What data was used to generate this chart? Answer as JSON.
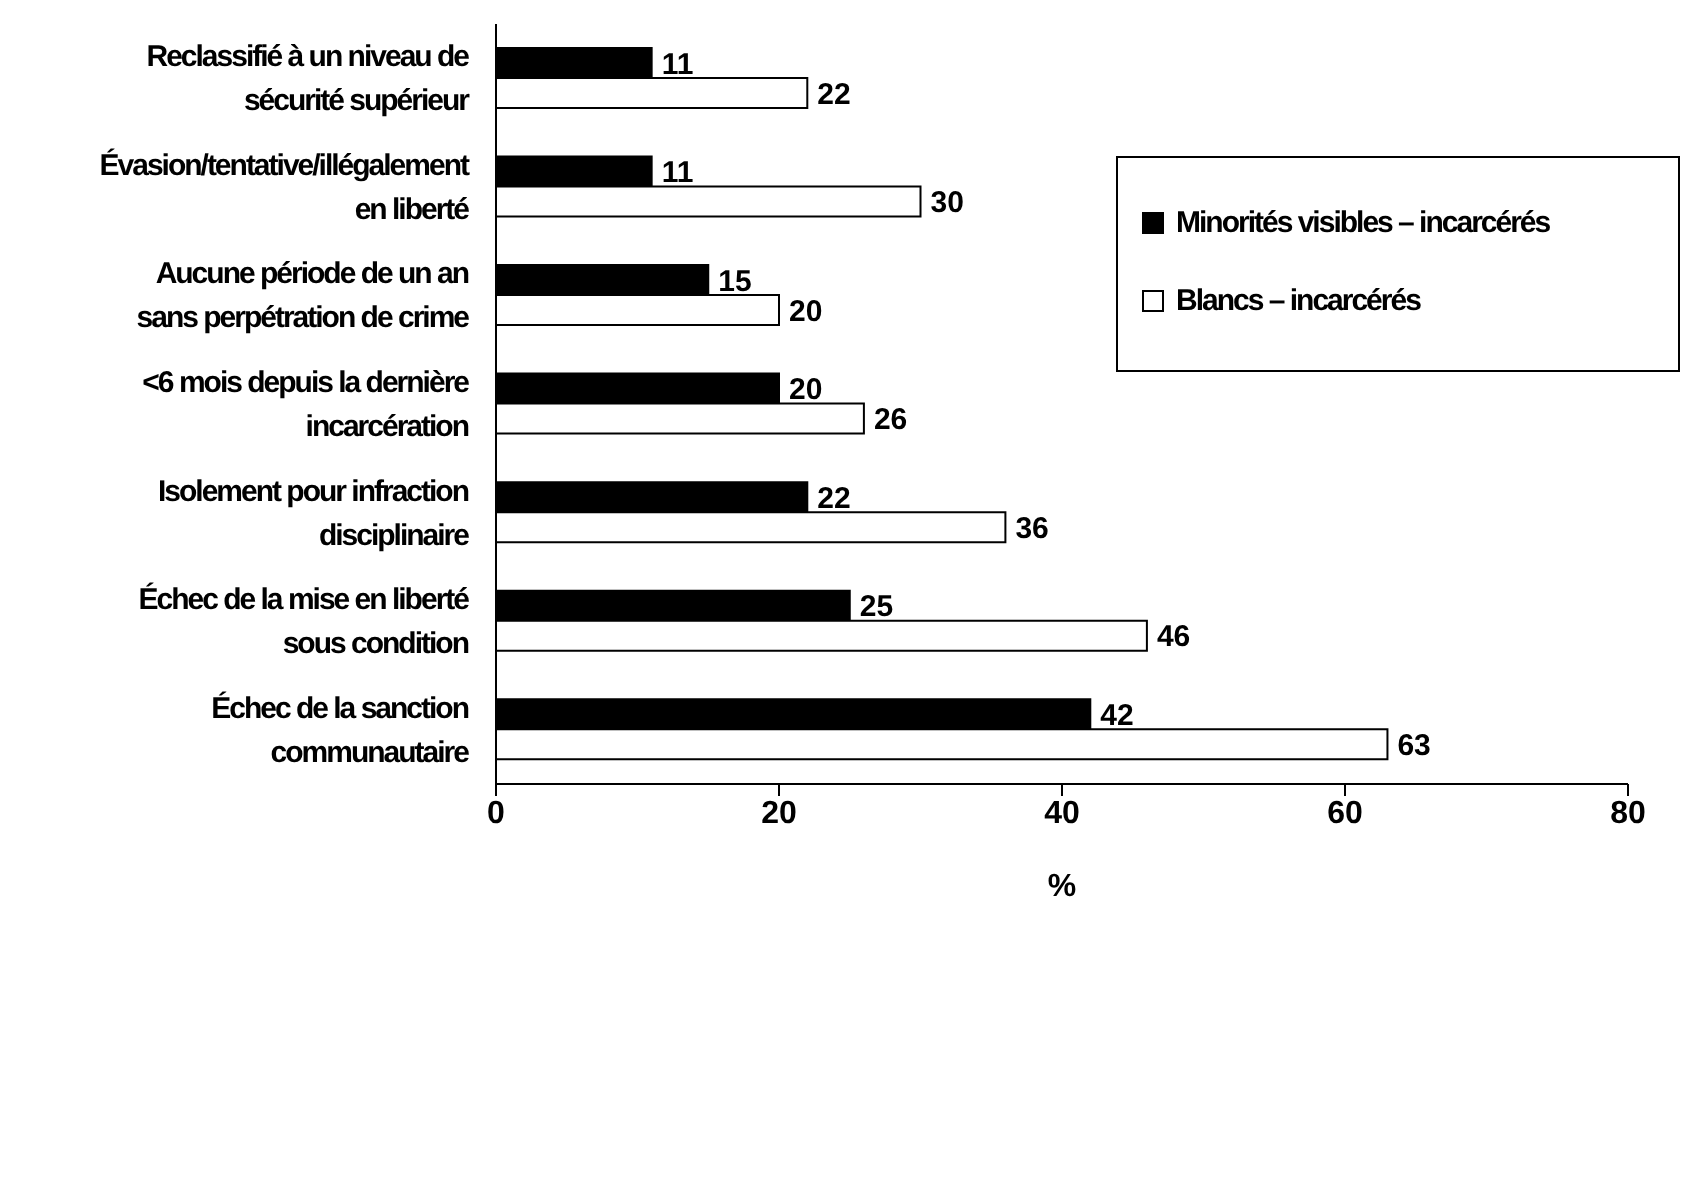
{
  "chart_data": {
    "type": "bar",
    "orientation": "horizontal",
    "xlabel": "%",
    "categories": [
      "Reclassifié à un niveau de sécurité supérieur",
      "Évasion/tentative/illégalement en liberté",
      "Aucune période de un an sans perpétration de crime",
      "<6 mois depuis la dernière incarcération",
      "Isolement pour infraction disciplinaire",
      "Échec de la mise en liberté sous condition",
      "Échec de la sanction communautaire"
    ],
    "series": [
      {
        "name": "Minorités visibles – incarcérés",
        "color": "#000000",
        "values": [
          11,
          11,
          15,
          20,
          22,
          25,
          42
        ]
      },
      {
        "name": "Blancs – incarcérés",
        "color": "#ffffff",
        "values": [
          22,
          30,
          20,
          26,
          36,
          46,
          63
        ]
      }
    ],
    "xlim": [
      0,
      80
    ],
    "xticks": [
      0,
      20,
      40,
      60,
      80
    ],
    "data_labels": true,
    "grid": false,
    "legend": "top right"
  }
}
